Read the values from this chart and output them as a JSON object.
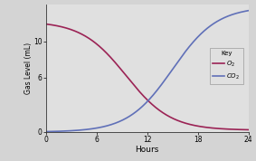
{
  "title": "",
  "xlabel": "Hours",
  "ylabel": "Gas Level (mL)",
  "xlim": [
    0,
    24
  ],
  "ylim": [
    0,
    14
  ],
  "yticks": [
    0,
    6,
    10
  ],
  "xticks": [
    0,
    6,
    12,
    18,
    24
  ],
  "o2_color": "#9B2355",
  "co2_color": "#6070B8",
  "o2_start": 12.2,
  "o2_end": 0.2,
  "co2_end": 13.8,
  "o2_midpoint": 9.5,
  "co2_midpoint": 15.0,
  "o2_steepness": 0.38,
  "co2_steepness": 0.38,
  "background_color": "#D4D4D4",
  "plot_bg_color": "#E0E0E0",
  "legend_title": "Key",
  "legend_o2": "$O_2$",
  "legend_co2": "$CO_2$",
  "line_width": 1.2
}
